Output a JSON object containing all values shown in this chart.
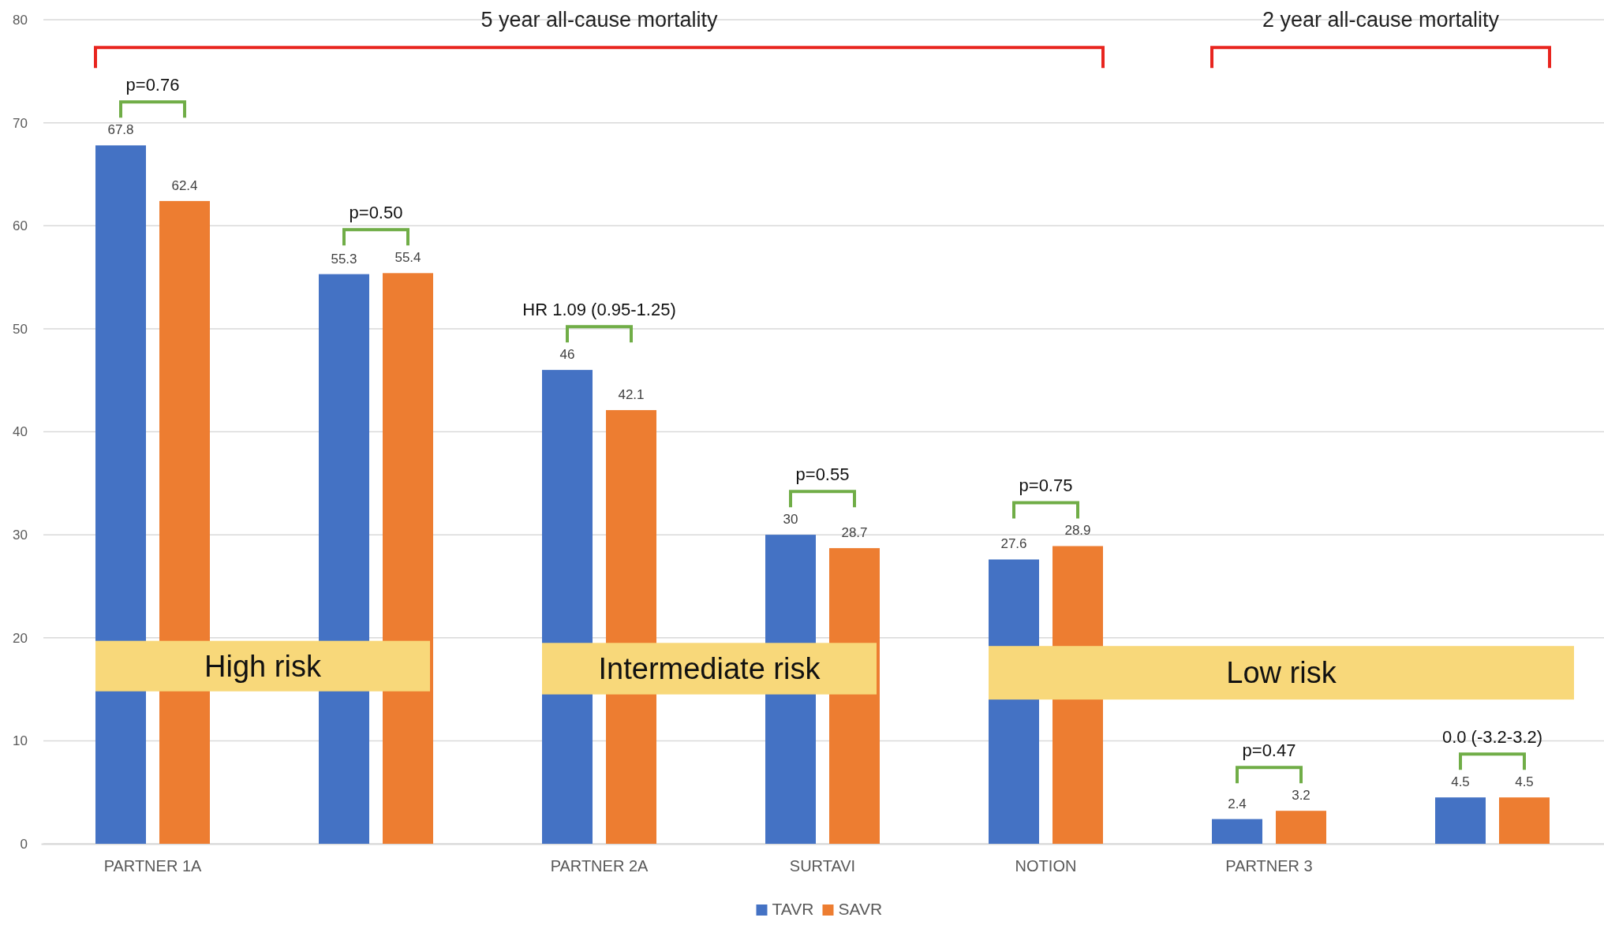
{
  "chart_data": {
    "type": "bar",
    "categories": [
      "PARTNER 1A",
      null,
      "PARTNER 2A",
      "SURTAVI",
      "NOTION",
      "PARTNER 3",
      null
    ],
    "series": [
      {
        "name": "TAVR",
        "color": "#4472c4",
        "values": [
          67.8,
          55.3,
          46,
          30,
          27.6,
          2.4,
          4.5
        ]
      },
      {
        "name": "SAVR",
        "color": "#ed7d31",
        "values": [
          62.4,
          55.4,
          42.1,
          28.7,
          28.9,
          3.2,
          4.5
        ]
      }
    ],
    "ylim": [
      0,
      80
    ],
    "yticks": [
      0,
      10,
      20,
      30,
      40,
      50,
      60,
      70,
      80
    ],
    "grid": "y",
    "legend": "bottom",
    "data_labels": true,
    "annotations": [
      "5 year all-cause mortality",
      "2 year all-cause mortality",
      "p=0.76",
      "p=0.50",
      "HR 1.09 (0.95-1.25)",
      "p=0.55",
      "p=0.75",
      "p=0.47",
      "0.0 (-3.2-3.2)",
      "High risk",
      "Intermediate risk",
      "Low risk"
    ]
  }
}
